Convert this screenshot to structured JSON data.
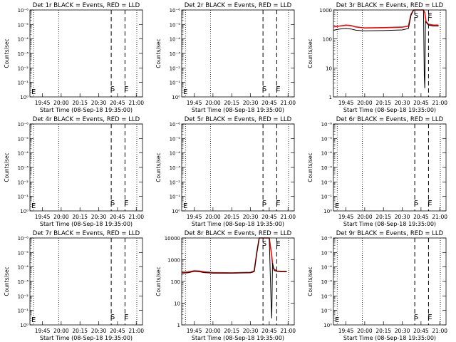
{
  "chart_data": [
    {
      "type": "line",
      "title": "Det 1r BLACK = Events, RED = LLD",
      "xlabel": "Start Time (08-Sep-18 19:35:00)",
      "ylabel": "Counts/sec",
      "x_ticks": [
        "19:45",
        "20:00",
        "20:15",
        "20:30",
        "20:45",
        "21:00"
      ],
      "y_scale": "log",
      "ylim": [
        1,
        1e-06
      ],
      "y_ticks": [
        "10⁰",
        "10⁻¹",
        "10⁻²",
        "10⁻³",
        "10⁻⁴",
        "10⁻⁵",
        "10⁻⁶"
      ],
      "markers": [
        {
          "label": "S",
          "time": "20:40"
        },
        {
          "label": "E",
          "time": "20:51"
        }
      ],
      "edge_label": "E",
      "series": []
    },
    {
      "type": "line",
      "title": "Det 2r BLACK = Events, RED = LLD",
      "xlabel": "Start Time (08-Sep-18 19:35:00)",
      "ylabel": "Counts/sec",
      "x_ticks": [
        "19:45",
        "20:00",
        "20:15",
        "20:30",
        "20:45",
        "21:00"
      ],
      "y_scale": "log",
      "ylim": [
        1,
        1e-06
      ],
      "y_ticks": [
        "10⁰",
        "10⁻¹",
        "10⁻²",
        "10⁻³",
        "10⁻⁴",
        "10⁻⁵",
        "10⁻⁶"
      ],
      "markers": [
        {
          "label": "S",
          "time": "20:40"
        },
        {
          "label": "E",
          "time": "20:51"
        }
      ],
      "edge_label": "E",
      "series": []
    },
    {
      "type": "line",
      "title": "Det 3r BLACK = Events, RED = LLD",
      "xlabel": "Start Time (08-Sep-18 19:35:00)",
      "ylabel": "Counts/sec",
      "x_ticks": [
        "19:45",
        "20:00",
        "20:15",
        "20:30",
        "20:45",
        "21:00"
      ],
      "y_scale": "log",
      "ylim": [
        1,
        1000
      ],
      "y_ticks": [
        "1",
        "10",
        "100",
        "1000"
      ],
      "markers": [
        {
          "label": "S",
          "time": "20:40"
        },
        {
          "label": "E",
          "time": "20:51"
        }
      ],
      "edge_label": "",
      "series": [
        {
          "color": "#ff0000",
          "points": [
            [
              0,
              260
            ],
            [
              5,
              280
            ],
            [
              10,
              300
            ],
            [
              14,
              290
            ],
            [
              18,
              260
            ],
            [
              25,
              240
            ],
            [
              40,
              245
            ],
            [
              55,
              255
            ],
            [
              60,
              280
            ],
            [
              62,
              700
            ],
            [
              64,
              1300
            ],
            [
              68,
              1350
            ],
            [
              72,
              1300
            ],
            [
              73,
              800
            ],
            [
              74,
              400
            ],
            [
              76,
              320
            ],
            [
              80,
              300
            ],
            [
              84,
              300
            ]
          ]
        },
        {
          "color": "#000000",
          "points": [
            [
              0,
              200
            ],
            [
              5,
              220
            ],
            [
              10,
              230
            ],
            [
              14,
              220
            ],
            [
              18,
              200
            ],
            [
              25,
              190
            ],
            [
              40,
              195
            ],
            [
              55,
              205
            ],
            [
              60,
              230
            ],
            [
              62,
              650
            ],
            [
              64,
              1300
            ],
            [
              68,
              1350
            ],
            [
              72,
              1300
            ],
            [
              72.6,
              5
            ],
            [
              73,
              2
            ],
            [
              73.6,
              400
            ],
            [
              76,
              300
            ],
            [
              80,
              280
            ],
            [
              84,
              280
            ]
          ]
        }
      ]
    },
    {
      "type": "line",
      "title": "Det 4r BLACK = Events, RED = LLD",
      "xlabel": "Start Time (08-Sep-18 19:35:00)",
      "ylabel": "Counts/sec",
      "x_ticks": [
        "19:45",
        "20:00",
        "20:15",
        "20:30",
        "20:45",
        "21:00"
      ],
      "y_scale": "log",
      "ylim": [
        1,
        1e-06
      ],
      "y_ticks": [
        "10⁰",
        "10⁻¹",
        "10⁻²",
        "10⁻³",
        "10⁻⁴",
        "10⁻⁵",
        "10⁻⁶"
      ],
      "markers": [
        {
          "label": "S",
          "time": "20:40"
        },
        {
          "label": "E",
          "time": "20:51"
        }
      ],
      "edge_label": "E",
      "series": []
    },
    {
      "type": "line",
      "title": "Det 5r BLACK = Events, RED = LLD",
      "xlabel": "Start Time (08-Sep-18 19:35:00)",
      "ylabel": "Counts/sec",
      "x_ticks": [
        "19:45",
        "20:00",
        "20:15",
        "20:30",
        "20:45",
        "21:00"
      ],
      "y_scale": "log",
      "ylim": [
        1,
        1e-06
      ],
      "y_ticks": [
        "10⁰",
        "10⁻¹",
        "10⁻²",
        "10⁻³",
        "10⁻⁴",
        "10⁻⁵",
        "10⁻⁶"
      ],
      "markers": [
        {
          "label": "S",
          "time": "20:40"
        },
        {
          "label": "E",
          "time": "20:51"
        }
      ],
      "edge_label": "E",
      "series": []
    },
    {
      "type": "line",
      "title": "Det 6r BLACK = Events, RED = LLD",
      "xlabel": "Start Time (08-Sep-18 19:35:00)",
      "ylabel": "Counts/sec",
      "x_ticks": [
        "19:45",
        "20:00",
        "20:15",
        "20:30",
        "20:45",
        "21:00"
      ],
      "y_scale": "log",
      "ylim": [
        1,
        1e-06
      ],
      "y_ticks": [
        "10⁰",
        "10⁻¹",
        "10⁻²",
        "10⁻³",
        "10⁻⁴",
        "10⁻⁵",
        "10⁻⁶"
      ],
      "markers": [
        {
          "label": "S",
          "time": "20:40"
        },
        {
          "label": "E",
          "time": "20:51"
        }
      ],
      "edge_label": "E",
      "series": []
    },
    {
      "type": "line",
      "title": "Det 7r BLACK = Events, RED = LLD",
      "xlabel": "Start Time (08-Sep-18 19:35:00)",
      "ylabel": "Counts/sec",
      "x_ticks": [
        "19:45",
        "20:00",
        "20:15",
        "20:30",
        "20:45",
        "21:00"
      ],
      "y_scale": "log",
      "ylim": [
        1,
        1e-06
      ],
      "y_ticks": [
        "10⁰",
        "10⁻¹",
        "10⁻²",
        "10⁻³",
        "10⁻⁴",
        "10⁻⁵",
        "10⁻⁶"
      ],
      "markers": [
        {
          "label": "S",
          "time": "20:40"
        },
        {
          "label": "E",
          "time": "20:51"
        }
      ],
      "edge_label": "E",
      "series": []
    },
    {
      "type": "line",
      "title": "Det 8r BLACK = Events, RED = LLD",
      "xlabel": "Start Time (08-Sep-18 19:35:00)",
      "ylabel": "Counts/sec",
      "x_ticks": [
        "19:45",
        "20:00",
        "20:15",
        "20:30",
        "20:45",
        "21:00"
      ],
      "y_scale": "log",
      "ylim": [
        1,
        10000
      ],
      "y_ticks": [
        "1",
        "10",
        "100",
        "1000",
        "10000"
      ],
      "markers": [
        {
          "label": "S",
          "time": "20:40"
        },
        {
          "label": "E",
          "time": "20:51"
        }
      ],
      "edge_label": "",
      "series": [
        {
          "color": "#ff0000",
          "points": [
            [
              0,
              260
            ],
            [
              5,
              270
            ],
            [
              10,
              310
            ],
            [
              14,
              300
            ],
            [
              18,
              275
            ],
            [
              25,
              255
            ],
            [
              40,
              250
            ],
            [
              55,
              260
            ],
            [
              58,
              300
            ],
            [
              60,
              2000
            ],
            [
              62,
              10000
            ],
            [
              66,
              12000
            ],
            [
              70,
              11000
            ],
            [
              72,
              1500
            ],
            [
              73,
              400
            ],
            [
              76,
              300
            ],
            [
              80,
              290
            ],
            [
              84,
              290
            ]
          ]
        },
        {
          "color": "#000000",
          "points": [
            [
              0,
              240
            ],
            [
              5,
              250
            ],
            [
              10,
              290
            ],
            [
              14,
              280
            ],
            [
              18,
              255
            ],
            [
              25,
              240
            ],
            [
              40,
              240
            ],
            [
              55,
              250
            ],
            [
              58,
              280
            ],
            [
              60,
              1900
            ],
            [
              62,
              10000
            ],
            [
              66,
              12000
            ],
            [
              70,
              11000
            ],
            [
              71.5,
              10
            ],
            [
              72,
              2
            ],
            [
              72.6,
              700
            ],
            [
              74,
              320
            ],
            [
              76,
              290
            ],
            [
              80,
              280
            ],
            [
              84,
              280
            ]
          ]
        }
      ]
    },
    {
      "type": "line",
      "title": "Det 9r BLACK = Events, RED = LLD",
      "xlabel": "Start Time (08-Sep-18 19:35:00)",
      "ylabel": "Counts/sec",
      "x_ticks": [
        "19:45",
        "20:00",
        "20:15",
        "20:30",
        "20:45",
        "21:00"
      ],
      "y_scale": "log",
      "ylim": [
        1,
        1e-06
      ],
      "y_ticks": [
        "10⁰",
        "10⁻¹",
        "10⁻²",
        "10⁻³",
        "10⁻⁴",
        "10⁻⁵",
        "10⁻⁶"
      ],
      "markers": [
        {
          "label": "S",
          "time": "20:40"
        },
        {
          "label": "E",
          "time": "20:51"
        }
      ],
      "edge_label": "E",
      "series": []
    }
  ]
}
